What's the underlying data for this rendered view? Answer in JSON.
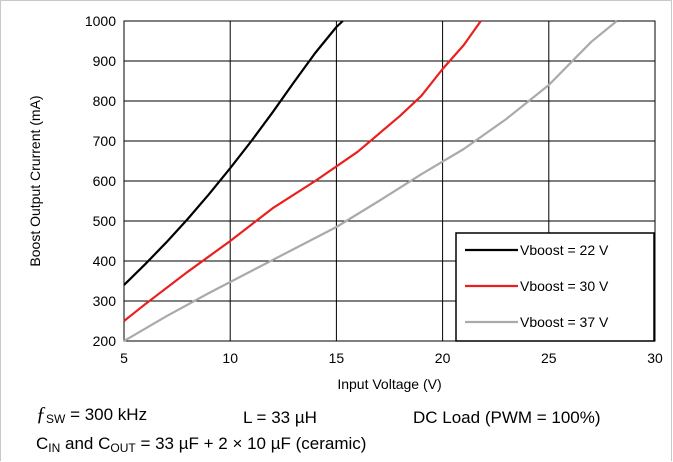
{
  "chart_data": {
    "type": "line",
    "title": "",
    "xlabel": "Input Voltage (V)",
    "ylabel": "Boost Output Crurrent (mA)",
    "xlim": [
      5,
      30
    ],
    "ylim": [
      200,
      1000
    ],
    "x_ticks": [
      "5",
      "10",
      "15",
      "20",
      "25",
      "30"
    ],
    "y_ticks": [
      "200",
      "300",
      "400",
      "500",
      "600",
      "700",
      "800",
      "900",
      "1000"
    ],
    "grid": true,
    "legend_position": "bottom-right",
    "series": [
      {
        "name": "Vboost = 22 V",
        "color": "#000000",
        "x": [
          5,
          6,
          7,
          8,
          9,
          10,
          11,
          12,
          13,
          14,
          15,
          15.3
        ],
        "y": [
          340,
          392,
          447,
          505,
          567,
          632,
          700,
          772,
          847,
          920,
          985,
          1000
        ]
      },
      {
        "name": "Vboost = 30 V",
        "color": "#e8201e",
        "x": [
          5,
          6,
          8,
          10,
          12,
          14,
          16,
          18,
          19,
          20,
          21,
          21.8
        ],
        "y": [
          250,
          292,
          373,
          450,
          532,
          600,
          673,
          763,
          813,
          880,
          940,
          1000
        ]
      },
      {
        "name": "Vboost = 37 V",
        "color": "#aaaaaa",
        "x": [
          5,
          7,
          9,
          11,
          13,
          15,
          17,
          19,
          21,
          23,
          25,
          27,
          28.2
        ],
        "y": [
          200,
          262,
          320,
          375,
          430,
          485,
          550,
          617,
          680,
          755,
          840,
          948,
          1000
        ]
      }
    ]
  },
  "notes": {
    "fsw_symbol": "ƒ",
    "fsw_sub": "SW",
    "fsw_value": " = 300 kHz",
    "inductance": "L = 33 µH",
    "load": "DC Load (PWM = 100%)",
    "cin_c": "C",
    "cin_sub": "IN",
    "cin_and": " and C",
    "cout_sub": "OUT",
    "cap_value": " = 33 µF + 2 × 10 µF (ceramic)"
  }
}
